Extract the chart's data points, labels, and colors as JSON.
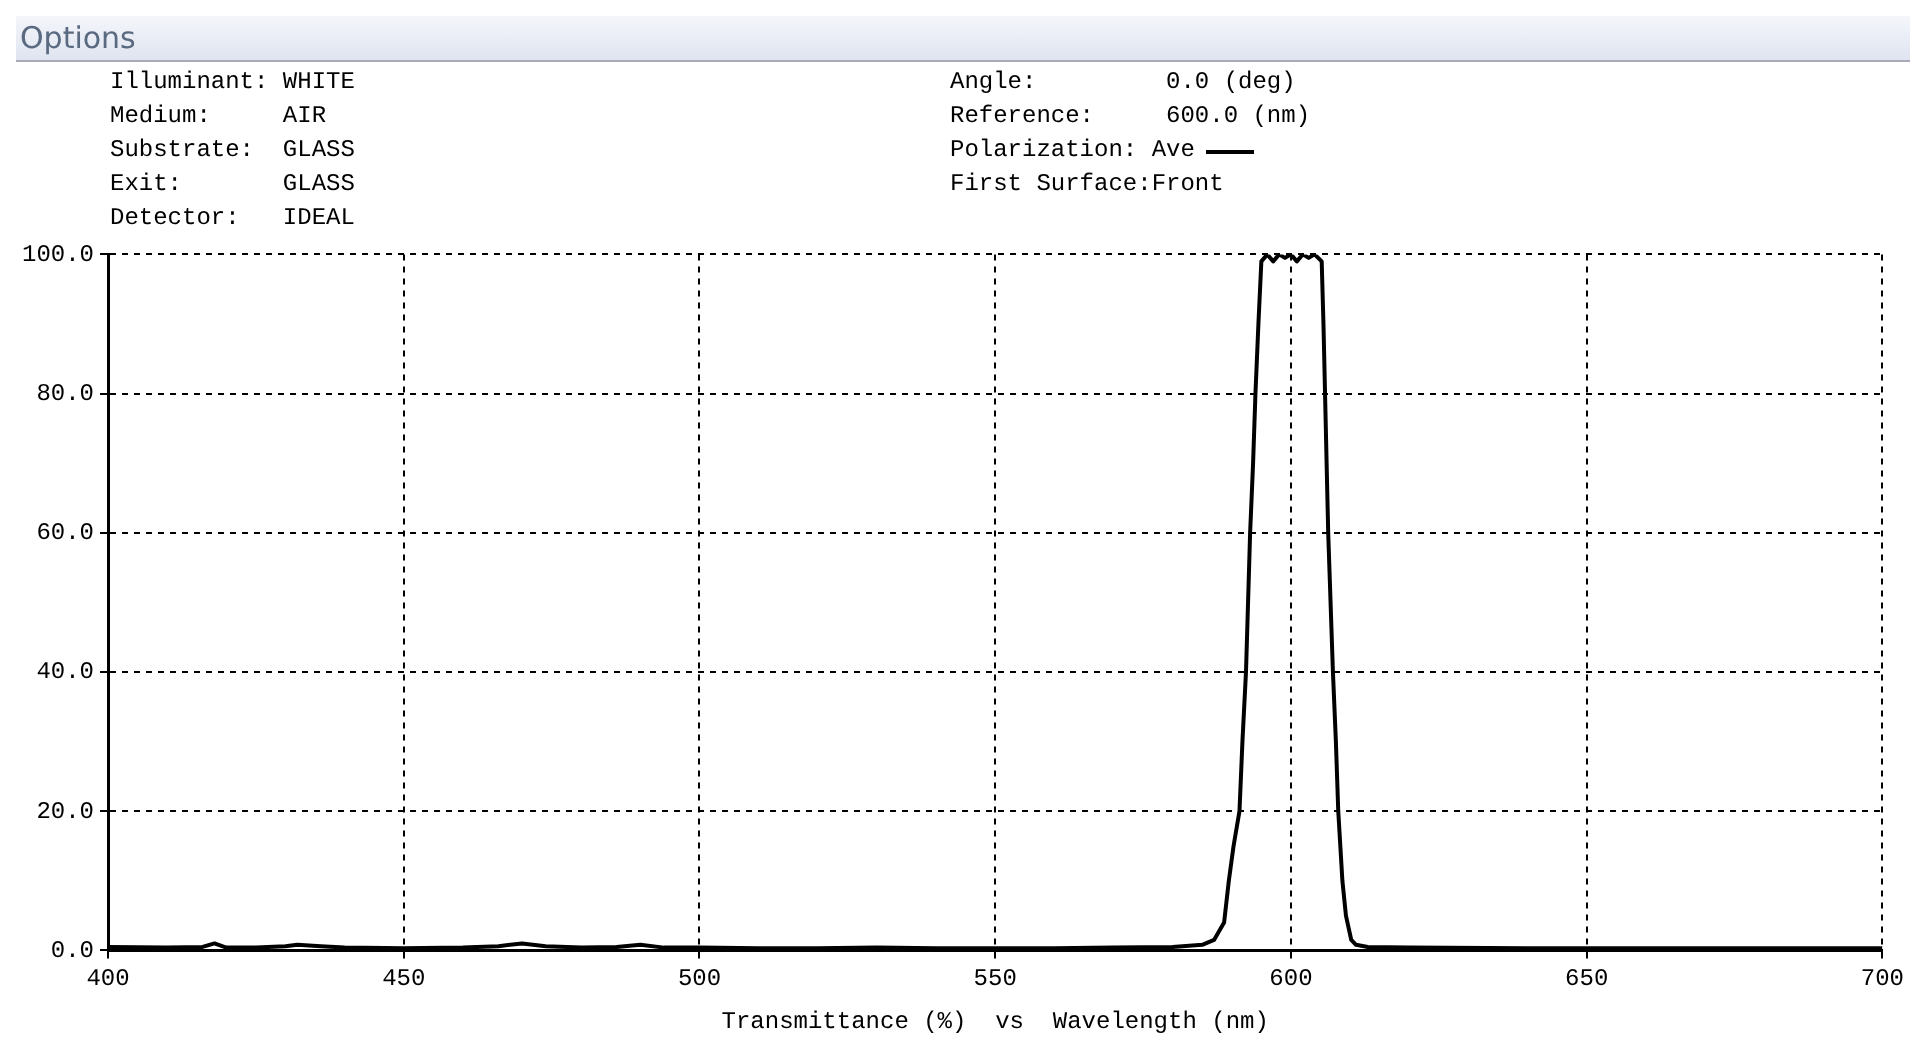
{
  "chart_data": {
    "type": "line",
    "title": "Options",
    "xlabel": "Transmittance (%)  vs  Wavelength (nm)",
    "annotations": [
      "Illuminant: WHITE",
      "Medium:     AIR",
      "Substrate:  GLASS",
      "Exit:       GLASS",
      "Detector:   IDEAL",
      "Angle:         0.0 (deg)",
      "Reference:     600.0 (nm)",
      "Polarization: Ave",
      "First Surface:Front"
    ],
    "x": [
      400,
      410,
      416,
      418,
      420,
      425,
      430,
      432,
      436,
      440,
      450,
      460,
      466,
      470,
      474,
      480,
      486,
      490,
      494,
      500,
      510,
      520,
      530,
      540,
      550,
      560,
      570,
      580,
      585,
      587,
      588.7,
      589.5,
      590.3,
      591.3,
      591.8,
      592.4,
      593.1,
      593.6,
      594,
      594.5,
      595,
      596,
      597,
      598,
      599,
      600,
      601,
      602,
      603,
      604,
      605.2,
      605.5,
      606.3,
      607.1,
      607.6,
      608,
      608.7,
      609.3,
      610.2,
      611,
      613,
      620,
      640,
      660,
      680,
      700
    ],
    "series": [
      {
        "color": "#000000",
        "values": [
          0.5,
          0.4,
          0.5,
          1.0,
          0.4,
          0.4,
          0.6,
          0.8,
          0.6,
          0.4,
          0.3,
          0.4,
          0.6,
          1.0,
          0.6,
          0.4,
          0.5,
          0.8,
          0.4,
          0.4,
          0.3,
          0.3,
          0.4,
          0.3,
          0.3,
          0.3,
          0.4,
          0.5,
          0.8,
          1.5,
          4,
          10,
          15,
          20,
          30,
          40,
          60,
          70,
          80,
          90,
          99,
          100,
          99,
          100,
          99.5,
          100,
          99,
          100,
          99.5,
          100,
          99,
          90,
          60,
          40,
          30,
          20,
          10,
          5,
          1.5,
          0.8,
          0.5,
          0.4,
          0.3,
          0.3,
          0.3,
          0.3
        ]
      }
    ],
    "xlim": [
      400,
      700
    ],
    "xticks": [
      400,
      450,
      500,
      550,
      600,
      650,
      700
    ],
    "ylim": [
      0,
      100
    ],
    "yticks": [
      {
        "value": 0,
        "label": "0.0"
      },
      {
        "value": 20,
        "label": "20.0"
      },
      {
        "value": 40,
        "label": "40.0"
      },
      {
        "value": 60,
        "label": "60.0"
      },
      {
        "value": 80,
        "label": "80.0"
      },
      {
        "value": 100,
        "label": "100.0"
      }
    ],
    "grid": true,
    "legend": false,
    "marker": "none",
    "line_style": "solid"
  }
}
